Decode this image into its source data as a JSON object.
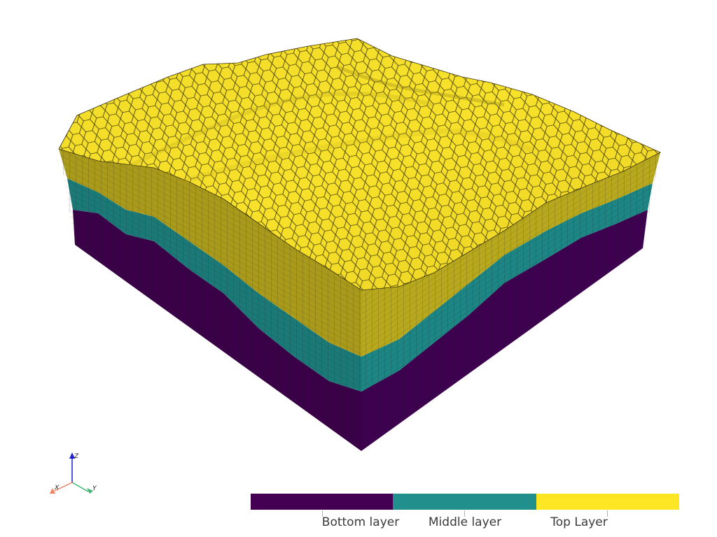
{
  "scene": {
    "layers": [
      {
        "name": "Bottom layer",
        "color": "#440154"
      },
      {
        "name": "Middle layer",
        "color": "#21908d"
      },
      {
        "name": "Top Layer",
        "color": "#fde725"
      }
    ]
  },
  "scalar_bar": {
    "segments": [
      {
        "label": "Bottom layer",
        "color": "#440154"
      },
      {
        "label": "Middle layer",
        "color": "#21908d"
      },
      {
        "label": "Top Layer",
        "color": "#fde725"
      }
    ]
  },
  "axes_widget": {
    "x_label": "X",
    "y_label": "Y",
    "z_label": "Z",
    "x_color": "#f08060",
    "y_color": "#3cb371",
    "z_color": "#1e1ed2"
  }
}
